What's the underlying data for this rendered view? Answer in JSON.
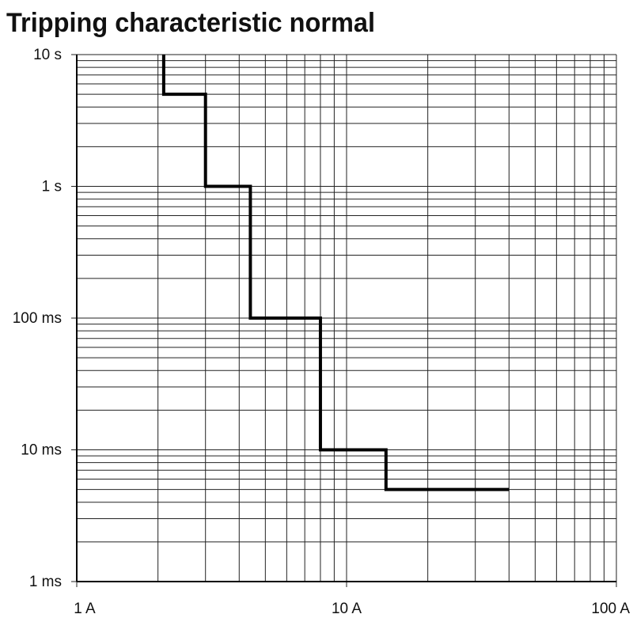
{
  "chart_data": {
    "type": "line",
    "title": "Tripping characteristic normal",
    "x_scale": "log",
    "y_scale": "log",
    "grid": true,
    "minor_grid": true,
    "xlim": [
      1,
      100
    ],
    "xticks": [
      {
        "value": 1,
        "label": "1 A"
      },
      {
        "value": 10,
        "label": "10 A"
      },
      {
        "value": 100,
        "label": "100 A"
      }
    ],
    "ylim": [
      0.001,
      10
    ],
    "yticks": [
      {
        "value": 0.001,
        "label": "1 ms"
      },
      {
        "value": 0.01,
        "label": "10 ms"
      },
      {
        "value": 0.1,
        "label": "100 ms"
      },
      {
        "value": 1,
        "label": "1 s"
      },
      {
        "value": 10,
        "label": "10 s"
      }
    ],
    "series": [
      {
        "color": "#000000",
        "x": [
          2.1,
          2.1,
          3,
          3,
          4.4,
          4.4,
          8,
          8,
          14,
          14,
          40
        ],
        "values": [
          10,
          5,
          5,
          1,
          1,
          0.1,
          0.1,
          0.01,
          0.01,
          0.005,
          0.005
        ]
      }
    ]
  }
}
